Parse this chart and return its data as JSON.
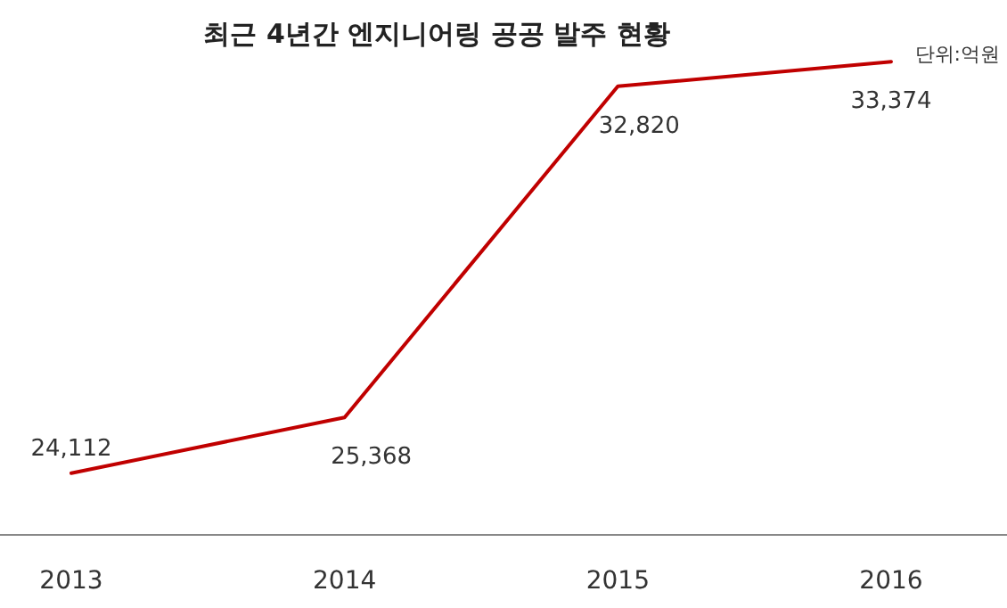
{
  "chart_data": {
    "type": "line",
    "title": "최근 4년간 엔지니어링 공공 발주 현황",
    "annotations": [
      "단위:억원"
    ],
    "categories": [
      "2013",
      "2014",
      "2015",
      "2016"
    ],
    "series": [
      {
        "color": "#c00000",
        "values": [
          24112,
          25368,
          32820,
          33374
        ],
        "value_labels": [
          "24,112",
          "25,368",
          "32,820",
          "33,374"
        ]
      }
    ],
    "marker": "none",
    "line_style": "solid"
  }
}
